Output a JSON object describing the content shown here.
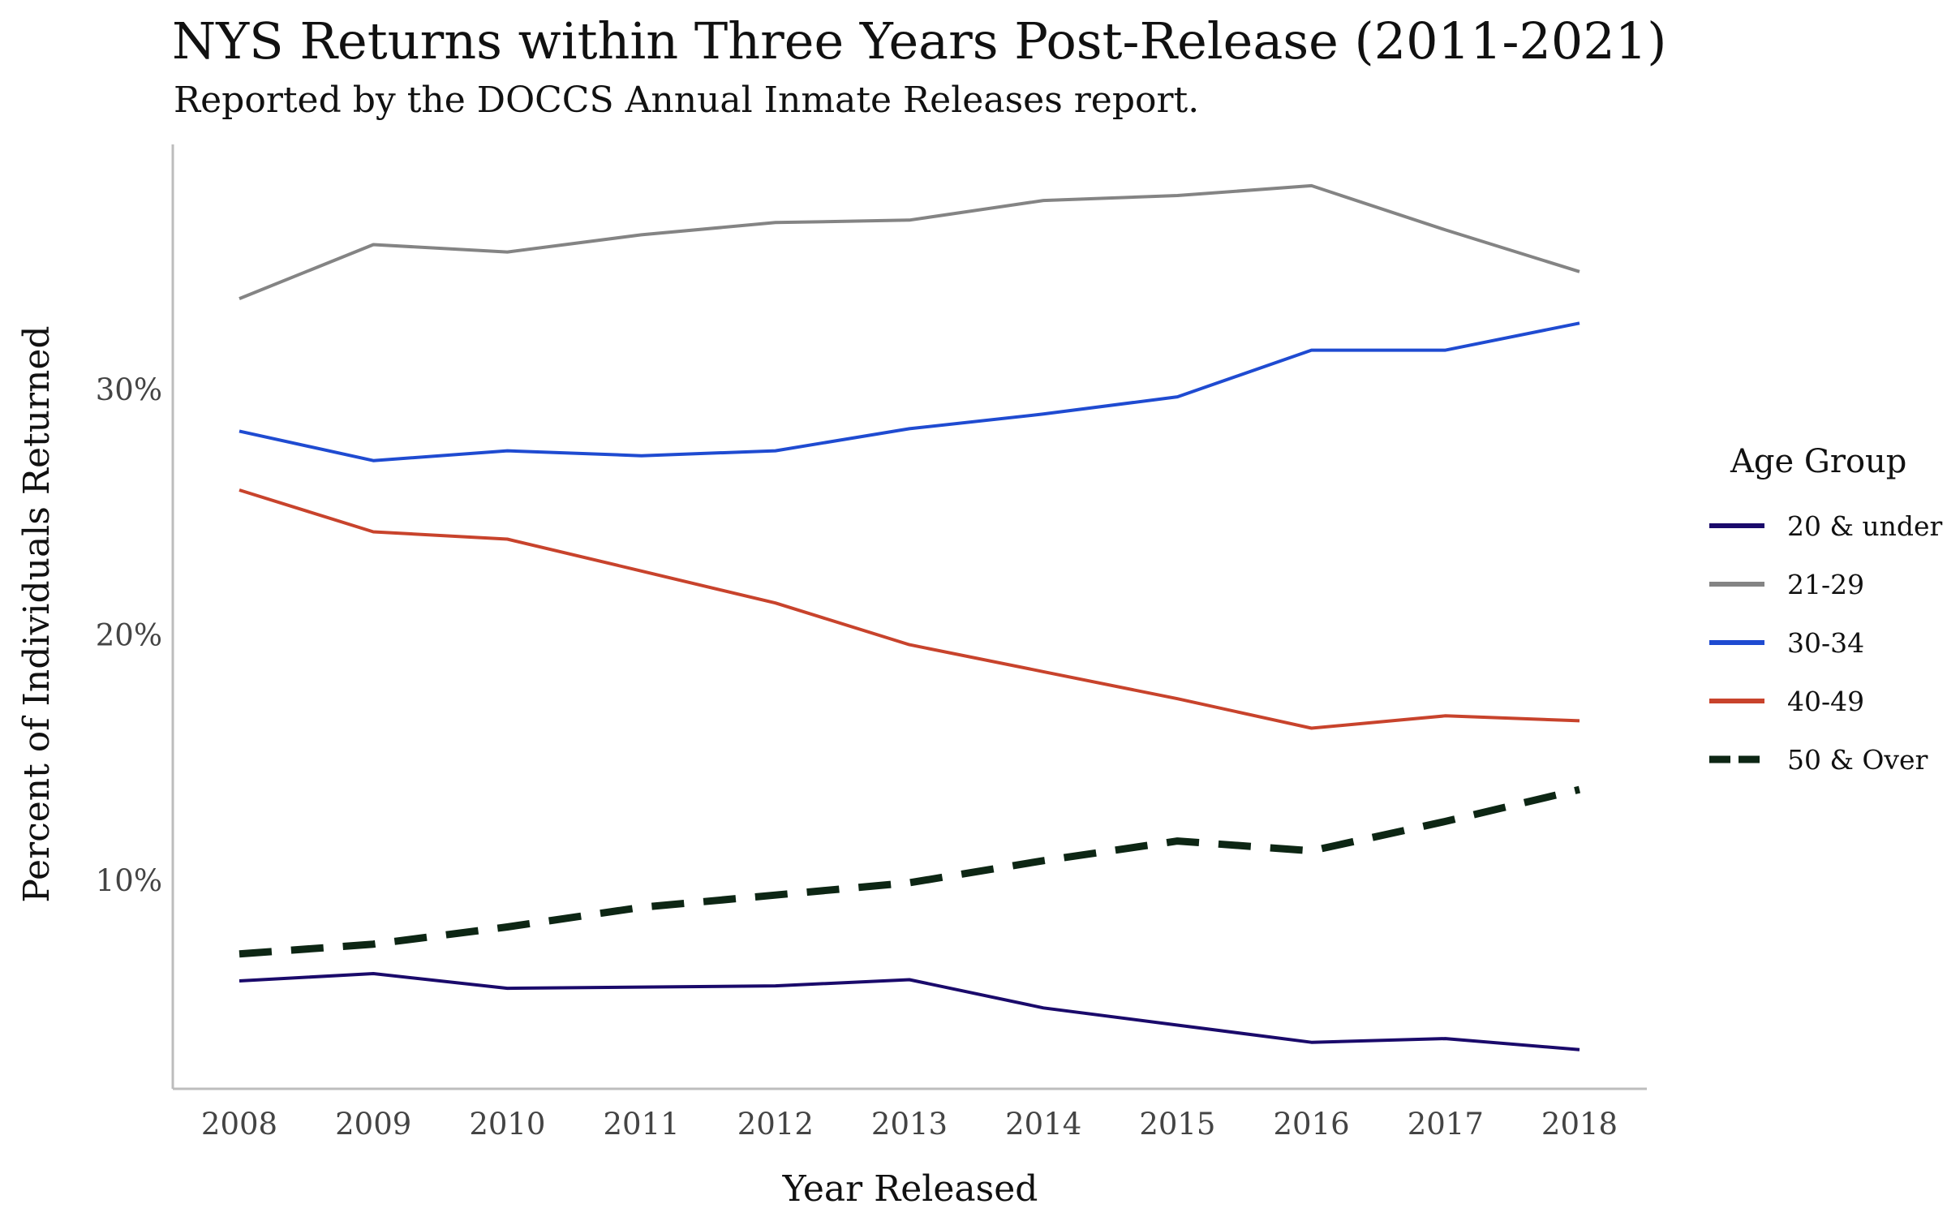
{
  "chart_data": {
    "type": "line",
    "title": "NYS Returns within Three Years Post-Release (2011-2021)",
    "subtitle": "Reported by the DOCCS Annual Inmate Releases report.",
    "xlabel": "Year Released",
    "ylabel": "Percent of Individuals Returned",
    "x": [
      2008,
      2009,
      2010,
      2011,
      2012,
      2013,
      2014,
      2015,
      2016,
      2017,
      2018
    ],
    "xticks": [
      "2008",
      "2009",
      "2010",
      "2011",
      "2012",
      "2013",
      "2014",
      "2015",
      "2016",
      "2017",
      "2018"
    ],
    "yticks": [
      {
        "value": 10,
        "label": "10%"
      },
      {
        "value": 20,
        "label": "20%"
      },
      {
        "value": 30,
        "label": "30%"
      }
    ],
    "ylim": [
      1.5,
      40
    ],
    "grid": false,
    "legend": {
      "title": "Age Group",
      "position": "right"
    },
    "series": [
      {
        "name": "20 & under",
        "color": "#1a0a6b",
        "dashed": false,
        "values": [
          5.9,
          6.2,
          5.6,
          5.65,
          5.7,
          5.95,
          4.8,
          4.1,
          3.4,
          3.55,
          3.1
        ]
      },
      {
        "name": "21-29",
        "color": "#848484",
        "dashed": false,
        "values": [
          33.7,
          35.9,
          35.6,
          36.3,
          36.8,
          36.9,
          37.7,
          37.9,
          38.3,
          36.5,
          34.8
        ]
      },
      {
        "name": "30-34",
        "color": "#1f4bd1",
        "dashed": false,
        "values": [
          28.3,
          27.1,
          27.5,
          27.3,
          27.5,
          28.4,
          29.0,
          29.7,
          31.6,
          31.6,
          32.7
        ]
      },
      {
        "name": "40-49",
        "color": "#c8432c",
        "dashed": false,
        "values": [
          25.9,
          24.2,
          23.9,
          22.6,
          21.3,
          19.6,
          18.5,
          17.4,
          16.2,
          16.7,
          16.5
        ]
      },
      {
        "name": "50 & Over",
        "color": "#0d2614",
        "dashed": true,
        "values": [
          7.0,
          7.4,
          8.1,
          8.9,
          9.4,
          9.9,
          10.8,
          11.6,
          11.2,
          12.4,
          13.7
        ]
      }
    ]
  }
}
